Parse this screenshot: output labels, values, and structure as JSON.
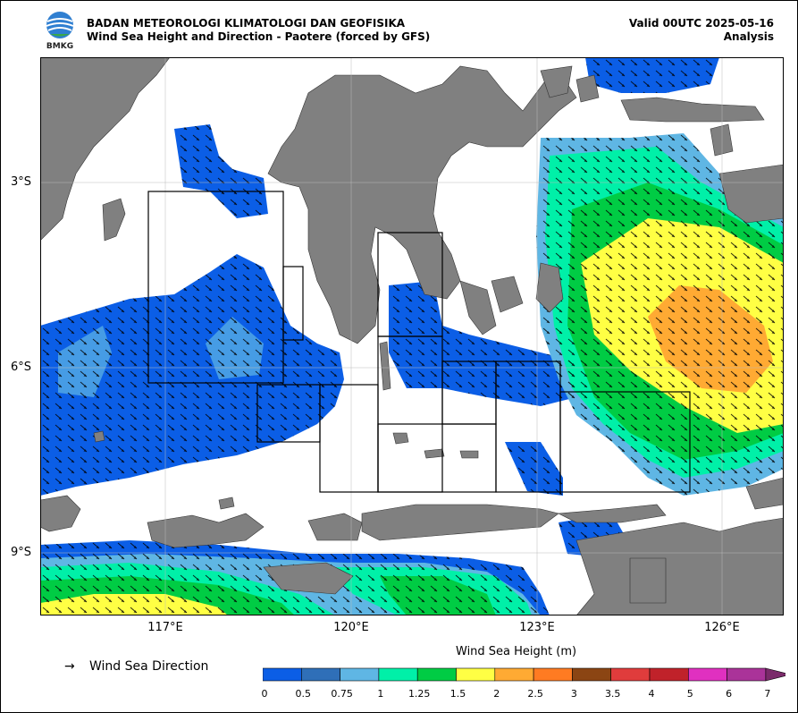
{
  "header": {
    "agency": "BADAN METEOROLOGI KLIMATOLOGI DAN GEOFISIKA",
    "subtitle": "Wind Sea Height and Direction - Paotere (forced by GFS)",
    "valid": "Valid 00UTC 2025-05-16",
    "mode": "Analysis",
    "logo_text": "BMKG"
  },
  "map": {
    "lat_ticks": [
      "3°S",
      "6°S",
      "9°S"
    ],
    "lon_ticks": [
      "117°E",
      "120°E",
      "123°E",
      "126°E"
    ],
    "land_color": "#808080",
    "sea_color": "#ffffff"
  },
  "legend": {
    "arrow_symbol": "→",
    "direction_label": "Wind Sea Direction"
  },
  "colorbar": {
    "title": "Wind Sea Height (m)",
    "levels": [
      "0",
      "0.5",
      "0.75",
      "1",
      "1.25",
      "1.5",
      "2",
      "2.5",
      "3",
      "3.5",
      "4",
      "5",
      "6",
      "7"
    ],
    "colors": [
      "#0b5ee6",
      "#2f6fb8",
      "#5fb6e4",
      "#00f0a8",
      "#00cc44",
      "#ffff44",
      "#ffaa33",
      "#ff7b22",
      "#8b4513",
      "#e03c3c",
      "#c0222a",
      "#e030c0",
      "#aa3399",
      "#7a2a6a"
    ]
  }
}
